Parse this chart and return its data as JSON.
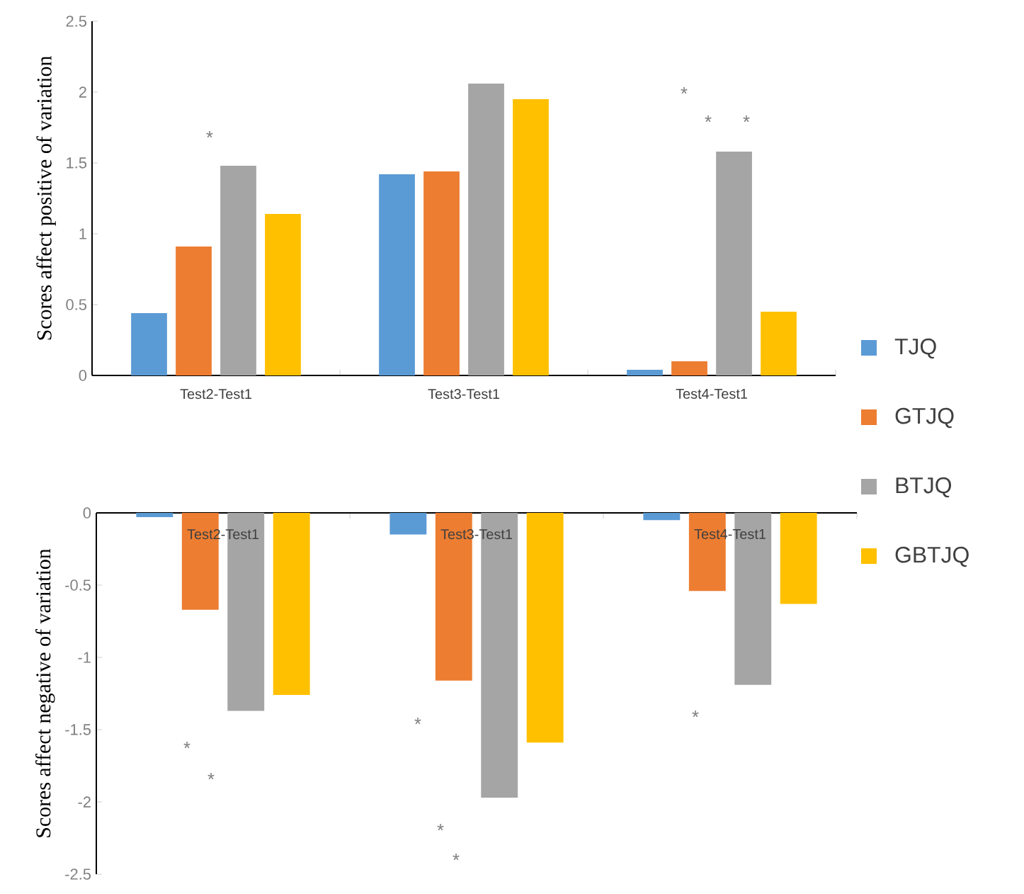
{
  "chart_data": [
    {
      "type": "bar",
      "ylabel": "Scores affect positive of variation",
      "categories": [
        "Test2-Test1",
        "Test3-Test1",
        "Test4-Test1"
      ],
      "series": [
        {
          "name": "TJQ",
          "color": "#5b9bd5",
          "values": [
            0.44,
            1.42,
            0.04
          ]
        },
        {
          "name": "GTJQ",
          "color": "#ed7d31",
          "values": [
            0.91,
            1.44,
            0.1
          ]
        },
        {
          "name": "BTJQ",
          "color": "#a5a5a5",
          "values": [
            1.48,
            2.06,
            1.58
          ]
        },
        {
          "name": "GBTJQ",
          "color": "#ffc000",
          "values": [
            1.14,
            1.95,
            0.45
          ]
        }
      ],
      "ylim": [
        0,
        2.5
      ],
      "yticks": [
        0,
        0.5,
        1,
        1.5,
        2,
        2.5
      ],
      "legend": "right",
      "annotations": [
        "*",
        "*",
        "*",
        "*"
      ]
    },
    {
      "type": "bar",
      "ylabel": "Scores affect negative of variation",
      "categories": [
        "Test2-Test1",
        "Test3-Test1",
        "Test4-Test1"
      ],
      "series": [
        {
          "color": "#5b9bd5",
          "values": [
            -0.03,
            -0.15,
            -0.05
          ]
        },
        {
          "color": "#ed7d31",
          "values": [
            -0.67,
            -1.16,
            -0.54
          ]
        },
        {
          "color": "#a5a5a5",
          "values": [
            -1.37,
            -1.97,
            -1.19
          ]
        },
        {
          "color": "#ffc000",
          "values": [
            -1.26,
            -1.59,
            -0.63
          ]
        }
      ],
      "ylim": [
        -2.5,
        0
      ],
      "yticks": [
        -2.5,
        -2,
        -1.5,
        -1,
        -0.5,
        0
      ],
      "annotations": [
        "*",
        "*",
        "*",
        "*",
        "*",
        "*"
      ]
    }
  ]
}
